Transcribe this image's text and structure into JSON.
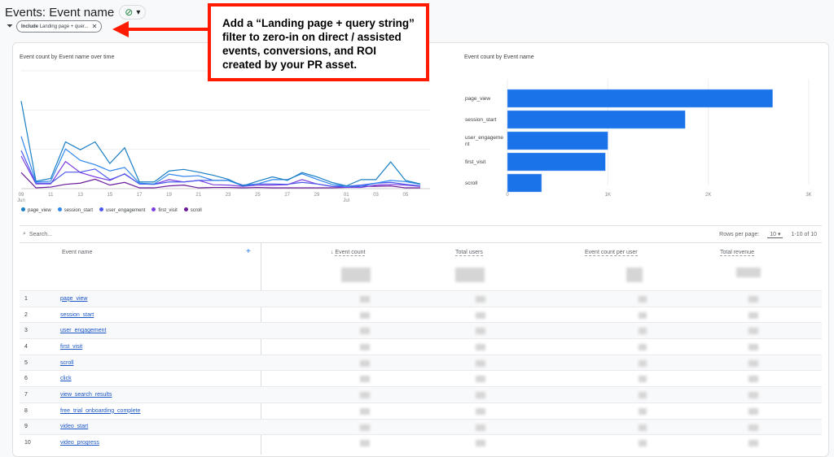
{
  "header": {
    "title": "Events: Event name",
    "status_icon": "check-circle-icon",
    "filter_include": "Include",
    "filter_text": "Landing page + quer..."
  },
  "callout": {
    "text": "Add a “Landing page + query string” filter to zero-in on direct / assisted events, conversions, and ROI created by your PR asset."
  },
  "chart_data": [
    {
      "type": "line",
      "title": "Event count by Event name over time",
      "x": [
        "09",
        "10",
        "11",
        "12",
        "13",
        "14",
        "15",
        "16",
        "17",
        "18",
        "19",
        "20",
        "21",
        "22",
        "23",
        "24",
        "25",
        "26",
        "27",
        "28",
        "29",
        "30",
        "01",
        "02",
        "03",
        "04",
        "05",
        "06"
      ],
      "x_ticks": [
        {
          "label": "09",
          "sub": "Jun",
          "i": 0
        },
        {
          "label": "11",
          "i": 2
        },
        {
          "label": "13",
          "i": 4
        },
        {
          "label": "15",
          "i": 6
        },
        {
          "label": "17",
          "i": 8
        },
        {
          "label": "19",
          "i": 10
        },
        {
          "label": "21",
          "i": 12
        },
        {
          "label": "23",
          "i": 14
        },
        {
          "label": "25",
          "i": 16
        },
        {
          "label": "27",
          "i": 18
        },
        {
          "label": "29",
          "i": 20
        },
        {
          "label": "01",
          "sub": "Jul",
          "i": 22
        },
        {
          "label": "03",
          "i": 24
        },
        {
          "label": "05",
          "i": 26
        }
      ],
      "ylim": [
        0,
        300
      ],
      "grid": true,
      "legend": "bottom-left",
      "series": [
        {
          "name": "page_view",
          "color": "#1b7fc4",
          "values": [
            223,
            19,
            26,
            119,
            99,
            119,
            64,
            104,
            17,
            17,
            45,
            49,
            42,
            34,
            24,
            7,
            19,
            30,
            21,
            41,
            30,
            16,
            7,
            23,
            23,
            68,
            21,
            12
          ]
        },
        {
          "name": "session_start",
          "color": "#2f86ee",
          "values": [
            133,
            17,
            19,
            101,
            72,
            61,
            45,
            54,
            14,
            12,
            37,
            31,
            33,
            21,
            21,
            7,
            12,
            23,
            23,
            38,
            24,
            11,
            6,
            6,
            14,
            21,
            18,
            11
          ]
        },
        {
          "name": "user_engagement",
          "color": "#4a58ee",
          "values": [
            97,
            14,
            14,
            42,
            42,
            50,
            23,
            37,
            12,
            11,
            17,
            17,
            21,
            21,
            21,
            9,
            12,
            12,
            11,
            16,
            12,
            6,
            6,
            9,
            14,
            16,
            11,
            7
          ]
        },
        {
          "name": "first_visit",
          "color": "#7c3fe0",
          "values": [
            83,
            12,
            12,
            69,
            41,
            30,
            21,
            38,
            12,
            11,
            23,
            17,
            21,
            10,
            9,
            6,
            9,
            9,
            10,
            23,
            12,
            6,
            3,
            3,
            9,
            11,
            9,
            6
          ]
        },
        {
          "name": "scroll",
          "color": "#6a1b9a",
          "values": [
            41,
            2,
            4,
            11,
            14,
            24,
            9,
            16,
            2,
            2,
            7,
            9,
            2,
            3,
            3,
            2,
            3,
            2,
            2,
            2,
            2,
            2,
            3,
            6,
            6,
            7,
            2,
            2
          ]
        }
      ]
    },
    {
      "type": "bar",
      "title": "Event count by Event name",
      "categories": [
        "page_view",
        "session_start",
        "user_engageme nt",
        "first_visit",
        "scroll"
      ],
      "values": [
        2640,
        1770,
        1000,
        975,
        340
      ],
      "xlim": [
        0,
        3000
      ],
      "x_ticks": [
        "0",
        "1K",
        "2K",
        "3K"
      ],
      "color": "#1a73e8"
    }
  ],
  "table": {
    "search_placeholder": "Search...",
    "rows_per_page_label": "Rows per page:",
    "rows_per_page": "10",
    "pagination": "1-10 of 10",
    "columns": [
      "Event name",
      "Event count",
      "Total users",
      "Event count per user",
      "Total revenue"
    ],
    "rows": [
      {
        "n": "1",
        "name": "page_view"
      },
      {
        "n": "2",
        "name": "session_start"
      },
      {
        "n": "3",
        "name": "user_engagement"
      },
      {
        "n": "4",
        "name": "first_visit"
      },
      {
        "n": "5",
        "name": "scroll"
      },
      {
        "n": "6",
        "name": "click"
      },
      {
        "n": "7",
        "name": "view_search_results"
      },
      {
        "n": "8",
        "name": "free_trial_onboarding_complete"
      },
      {
        "n": "9",
        "name": "video_start"
      },
      {
        "n": "10",
        "name": "video_progress"
      }
    ]
  }
}
